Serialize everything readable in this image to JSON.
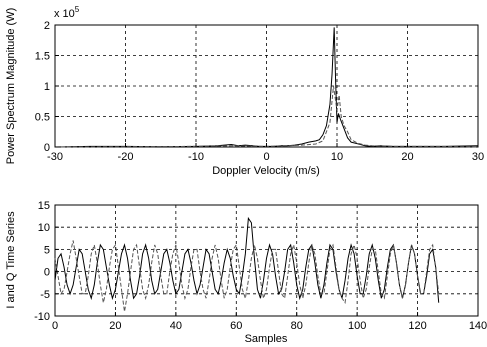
{
  "chart_data": [
    {
      "type": "line",
      "xlabel": "Doppler Velocity (m/s)",
      "ylabel": "Power Spectrum Magnitude (W)",
      "y_exponent_label": "x 10",
      "y_exponent_power": "5",
      "xlim": [
        -30,
        30
      ],
      "ylim": [
        0,
        2
      ],
      "xticks": [
        "-30",
        "-20",
        "-10",
        "0",
        "10",
        "20",
        "30"
      ],
      "yticks": [
        "0",
        "0.5",
        "1",
        "1.5",
        "2"
      ],
      "grid": true,
      "series": [
        {
          "style": "solid",
          "color": "#000000",
          "x": [
            -30,
            -25,
            -20,
            -15,
            -10,
            -7,
            -5,
            -4,
            -3,
            -2,
            -1,
            0,
            1,
            2,
            3,
            4,
            5,
            6,
            7,
            7.5,
            8,
            8.5,
            9,
            9.3,
            9.6,
            9.8,
            10,
            10.2,
            10.5,
            11,
            11.5,
            12,
            13,
            14,
            15,
            16,
            18,
            20,
            25,
            30
          ],
          "y": [
            0,
            0.01,
            0.01,
            0.005,
            0.01,
            0.02,
            0.04,
            0.02,
            0.03,
            0.02,
            0.01,
            0.01,
            0.01,
            0.02,
            0.02,
            0.03,
            0.05,
            0.08,
            0.1,
            0.12,
            0.2,
            0.35,
            0.7,
            1.2,
            1.96,
            1.1,
            0.4,
            0.55,
            0.45,
            0.3,
            0.15,
            0.08,
            0.05,
            0.02,
            0.01,
            0.02,
            0.01,
            0.01,
            0.01,
            0.02
          ]
        },
        {
          "style": "dashed",
          "color": "#555555",
          "x": [
            -30,
            -20,
            -10,
            -5,
            0,
            3,
            5,
            7,
            8,
            9,
            9.5,
            10,
            10.3,
            10.6,
            11,
            11.5,
            12,
            13,
            14,
            15,
            18,
            20,
            25,
            30
          ],
          "y": [
            0,
            0.005,
            0.01,
            0.02,
            0.01,
            0.02,
            0.03,
            0.05,
            0.1,
            0.4,
            1.0,
            0.6,
            0.85,
            0.5,
            0.35,
            0.25,
            0.12,
            0.06,
            0.03,
            0.02,
            0.01,
            0.01,
            0.01,
            0.0
          ]
        }
      ]
    },
    {
      "type": "line",
      "xlabel": "Samples",
      "ylabel": "I and Q Time Series",
      "xlim": [
        0,
        140
      ],
      "ylim": [
        -10,
        15
      ],
      "xticks": [
        "0",
        "20",
        "40",
        "60",
        "80",
        "100",
        "120",
        "140"
      ],
      "yticks": [
        "-10",
        "-5",
        "0",
        "5",
        "10",
        "15"
      ],
      "grid": true,
      "series": [
        {
          "style": "solid",
          "color": "#000000",
          "x": [
            0,
            1,
            2,
            3,
            4,
            5,
            6,
            7,
            8,
            9,
            10,
            11,
            12,
            13,
            14,
            15,
            16,
            17,
            18,
            19,
            20,
            21,
            22,
            23,
            24,
            25,
            26,
            27,
            28,
            29,
            30,
            31,
            32,
            33,
            34,
            35,
            36,
            37,
            38,
            39,
            40,
            41,
            42,
            43,
            44,
            45,
            46,
            47,
            48,
            49,
            50,
            51,
            52,
            53,
            54,
            55,
            56,
            57,
            58,
            59,
            60,
            61,
            62,
            63,
            64,
            65,
            66,
            67,
            68,
            69,
            70,
            71,
            72,
            73,
            74,
            75,
            76,
            77,
            78,
            79,
            80,
            81,
            82,
            83,
            84,
            85,
            86,
            87,
            88,
            89,
            90,
            91,
            92,
            93,
            94,
            95,
            96,
            97,
            98,
            99,
            100,
            101,
            102,
            103,
            104,
            105,
            106,
            107,
            108,
            109,
            110,
            111,
            112,
            113,
            114,
            115,
            116,
            117,
            118,
            119,
            120,
            121,
            122,
            123,
            124,
            125,
            126,
            127
          ],
          "y": [
            -2,
            3,
            4,
            1,
            -3,
            -5,
            -3,
            1,
            5,
            4,
            0,
            -4,
            -6,
            -3,
            2,
            6,
            5,
            1,
            -3,
            -6,
            -4,
            0,
            4,
            6,
            3,
            -2,
            -6,
            -5,
            -1,
            4,
            6,
            3,
            -2,
            -5,
            -4,
            0,
            4,
            5,
            2,
            -2,
            -5,
            -4,
            0,
            4,
            5,
            2,
            -2,
            -5,
            -3,
            1,
            5,
            4,
            0,
            -4,
            -5,
            -2,
            2,
            5,
            3,
            -1,
            -4,
            -5,
            -1,
            4,
            12,
            11,
            3,
            -4,
            -6,
            -2,
            3,
            6,
            4,
            -1,
            -5,
            -4,
            0,
            5,
            6,
            2,
            -3,
            -6,
            -4,
            1,
            5,
            6,
            2,
            -3,
            -6,
            -3,
            2,
            6,
            5,
            0,
            -4,
            -6,
            -2,
            3,
            6,
            4,
            -1,
            -5,
            -5,
            -1,
            4,
            6,
            3,
            -2,
            -6,
            -4,
            1,
            5,
            6,
            2,
            -3,
            -6,
            -3,
            2,
            6,
            4,
            -1,
            -5,
            -5,
            -1,
            4,
            5,
            1,
            -7
          ]
        },
        {
          "style": "dashed",
          "color": "#555555",
          "x": [
            0,
            1,
            2,
            3,
            4,
            5,
            6,
            7,
            8,
            9,
            10,
            11,
            12,
            13,
            14,
            15,
            16,
            17,
            18,
            19,
            20,
            21,
            22,
            23,
            24,
            25,
            26,
            27,
            28,
            29,
            30,
            31,
            32,
            33,
            34,
            35,
            36,
            37,
            38,
            39,
            40,
            41,
            42,
            43,
            44,
            45,
            46,
            47,
            48,
            49,
            50,
            51,
            52,
            53,
            54,
            55,
            56,
            57,
            58,
            59,
            60,
            61,
            62,
            63,
            64,
            65,
            66,
            67,
            68,
            69,
            70,
            71,
            72,
            73,
            74,
            75,
            76,
            77,
            78,
            79,
            80,
            81,
            82,
            83,
            84,
            85,
            86,
            87,
            88,
            89,
            90,
            91,
            92,
            93,
            94,
            95,
            96,
            97,
            98,
            99,
            100,
            101,
            102,
            103,
            104,
            105,
            106,
            107,
            108,
            109,
            110,
            111,
            112,
            113,
            114,
            115,
            116,
            117,
            118,
            119,
            120,
            121,
            122,
            123,
            124,
            125,
            126,
            127
          ],
          "y": [
            3,
            -1,
            -5,
            -4,
            0,
            4,
            7,
            3,
            -1,
            -5,
            -5,
            -1,
            4,
            6,
            2,
            -3,
            -7,
            -4,
            1,
            5,
            6,
            1,
            -4,
            -9,
            -5,
            0,
            5,
            6,
            1,
            -4,
            -6,
            -3,
            2,
            6,
            4,
            -1,
            -5,
            -5,
            0,
            4,
            6,
            2,
            -3,
            -6,
            -4,
            1,
            5,
            5,
            0,
            -4,
            -6,
            -2,
            3,
            6,
            3,
            -2,
            -6,
            -4,
            1,
            5,
            6,
            1,
            -4,
            -6,
            -2,
            3,
            6,
            3,
            -2,
            -6,
            -4,
            1,
            5,
            5,
            0,
            -5,
            -6,
            -1,
            4,
            6,
            2,
            -3,
            -6,
            -3,
            2,
            6,
            4,
            -1,
            -5,
            -5,
            0,
            5,
            6,
            1,
            -4,
            -6,
            -7,
            -2,
            4,
            6,
            3,
            -2,
            -6,
            -4,
            1,
            5,
            5,
            0,
            -5,
            -6,
            -1,
            4,
            6,
            2,
            -3,
            -6,
            -3,
            2,
            6,
            4,
            -1,
            -5,
            -5,
            0,
            5,
            6,
            1,
            -5
          ]
        }
      ]
    }
  ]
}
